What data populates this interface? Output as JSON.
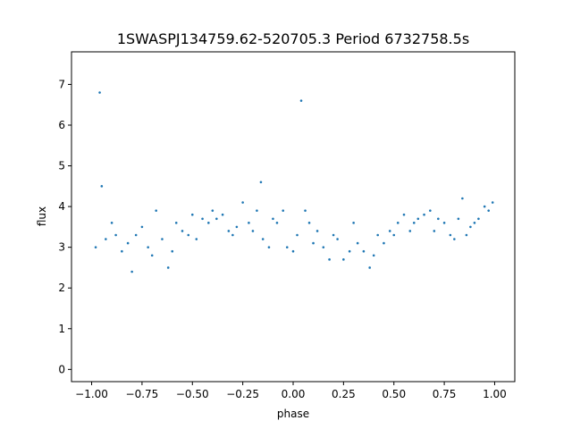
{
  "chart_data": {
    "type": "scatter",
    "title": "1SWASPJ134759.62-520705.3 Period 6732758.5s",
    "xlabel": "phase",
    "ylabel": "flux",
    "xlim": [
      -1.1,
      1.1
    ],
    "ylim": [
      -0.3,
      7.8
    ],
    "xticks": [
      -1.0,
      -0.75,
      -0.5,
      -0.25,
      0.0,
      0.25,
      0.5,
      0.75,
      1.0
    ],
    "xtick_labels": [
      "−1.00",
      "−0.75",
      "−0.50",
      "−0.25",
      "0.00",
      "0.25",
      "0.50",
      "0.75",
      "1.00"
    ],
    "yticks": [
      0,
      1,
      2,
      3,
      4,
      5,
      6,
      7
    ],
    "ytick_labels": [
      "0",
      "1",
      "2",
      "3",
      "4",
      "5",
      "6",
      "7"
    ],
    "grid": false,
    "marker_color": "#1f77b4",
    "x": [
      -0.98,
      -0.96,
      -0.95,
      -0.93,
      -0.9,
      -0.88,
      -0.85,
      -0.82,
      -0.8,
      -0.78,
      -0.75,
      -0.72,
      -0.7,
      -0.68,
      -0.65,
      -0.62,
      -0.6,
      -0.58,
      -0.55,
      -0.52,
      -0.5,
      -0.48,
      -0.45,
      -0.42,
      -0.4,
      -0.38,
      -0.35,
      -0.32,
      -0.3,
      -0.28,
      -0.25,
      -0.22,
      -0.2,
      -0.18,
      -0.16,
      -0.15,
      -0.12,
      -0.1,
      -0.08,
      -0.05,
      -0.03,
      0.0,
      0.02,
      0.04,
      0.06,
      0.08,
      0.1,
      0.12,
      0.15,
      0.18,
      0.2,
      0.22,
      0.25,
      0.28,
      0.3,
      0.32,
      0.35,
      0.38,
      0.4,
      0.42,
      0.45,
      0.48,
      0.5,
      0.52,
      0.55,
      0.58,
      0.6,
      0.62,
      0.65,
      0.68,
      0.7,
      0.72,
      0.75,
      0.78,
      0.8,
      0.82,
      0.84,
      0.86,
      0.88,
      0.9,
      0.92,
      0.95,
      0.97,
      0.99
    ],
    "y": [
      3.0,
      6.8,
      4.5,
      3.2,
      3.6,
      3.3,
      2.9,
      3.1,
      2.4,
      3.3,
      3.5,
      3.0,
      2.8,
      3.9,
      3.2,
      2.5,
      2.9,
      3.6,
      3.4,
      3.3,
      3.8,
      3.2,
      3.7,
      3.6,
      3.9,
      3.7,
      3.8,
      3.4,
      3.3,
      3.5,
      4.1,
      3.6,
      3.4,
      3.9,
      4.6,
      3.2,
      3.0,
      3.7,
      3.6,
      3.9,
      3.0,
      2.9,
      3.3,
      6.6,
      3.9,
      3.6,
      3.1,
      3.4,
      3.0,
      2.7,
      3.3,
      3.2,
      2.7,
      2.9,
      3.6,
      3.1,
      2.9,
      2.5,
      2.8,
      3.3,
      3.1,
      3.4,
      3.3,
      3.6,
      3.8,
      3.4,
      3.6,
      3.7,
      3.8,
      3.9,
      3.4,
      3.7,
      3.6,
      3.3,
      3.2,
      3.7,
      4.2,
      3.3,
      3.5,
      3.6,
      3.7,
      4.0,
      3.9,
      4.1
    ]
  }
}
